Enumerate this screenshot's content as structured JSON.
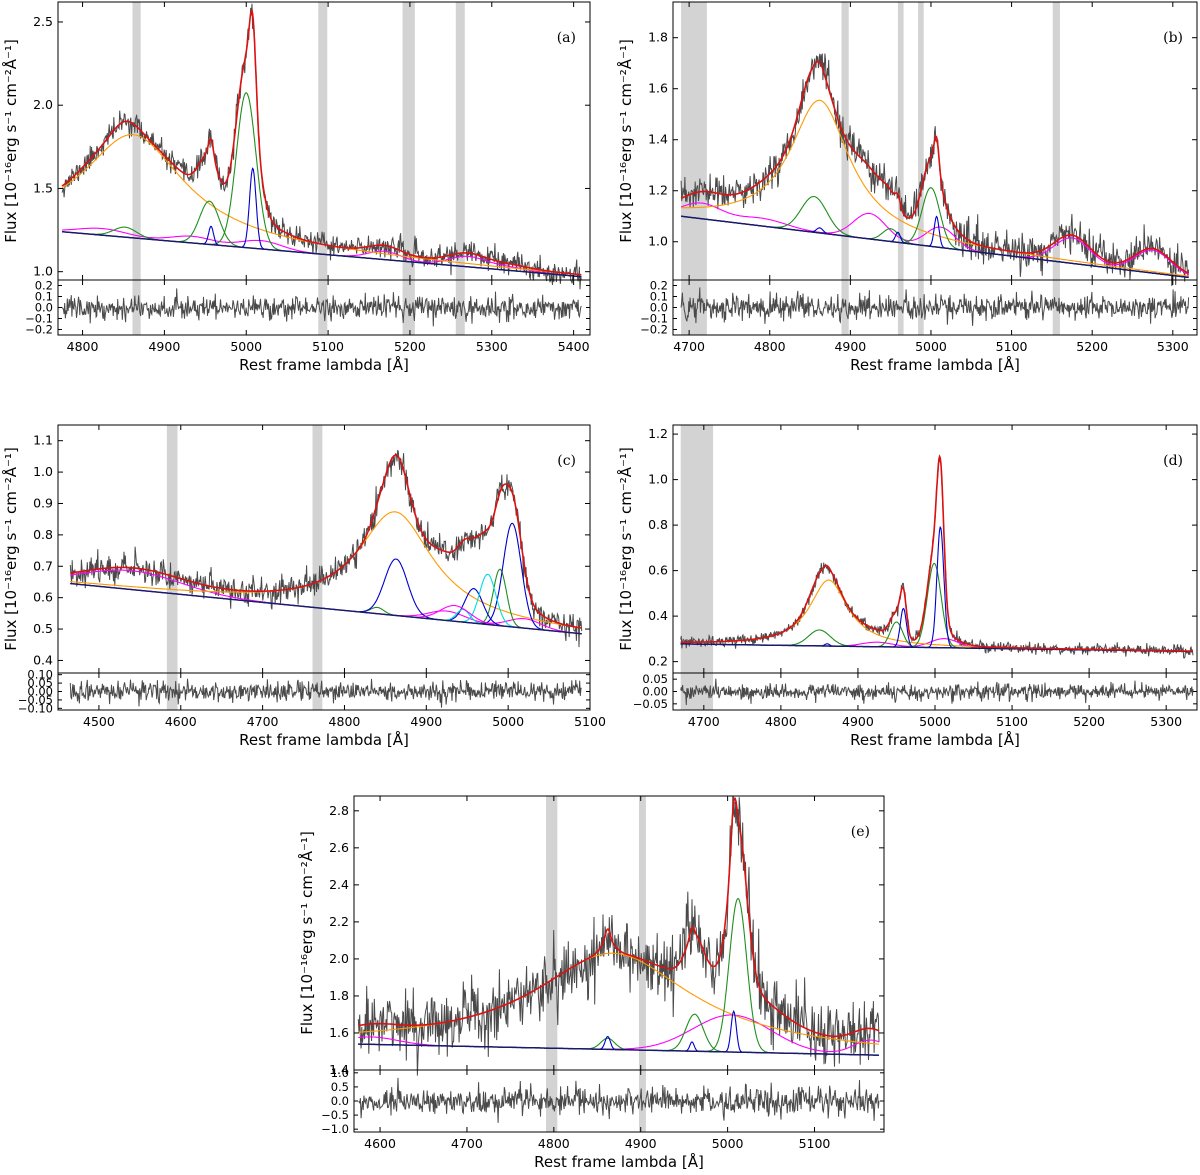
{
  "chart_data": [
    {
      "type": "line",
      "panel_label": "(a)",
      "xlabel": "Rest frame lambda [Å]",
      "ylabel": "Flux [10⁻¹⁶erg s⁻¹ cm⁻²Å⁻¹]",
      "xlim": [
        4770,
        5420
      ],
      "ylim": [
        0.95,
        2.62
      ],
      "resid_ylim": [
        -0.25,
        0.25
      ],
      "x_ticks": [
        4800,
        4900,
        5000,
        5100,
        5200,
        5300,
        5400
      ],
      "y_ticks": [
        1.0,
        1.5,
        2.0,
        2.5
      ],
      "resid_ticks": [
        0.2,
        0.1,
        0.0,
        -0.1,
        -0.2
      ],
      "masked_regions": [
        [
          4861,
          4871
        ],
        [
          5088,
          5099
        ],
        [
          5191,
          5206
        ],
        [
          5256,
          5267
        ]
      ],
      "continuum": {
        "x0": 4775,
        "y0": 1.24,
        "x1": 5410,
        "y1": 0.97
      },
      "feii": {
        "amp": 0.04,
        "bumps": [
          [
            4824,
            0.04,
            30
          ],
          [
            4934,
            0.04,
            25
          ],
          [
            5018,
            0.05,
            25
          ],
          [
            5169,
            0.05,
            20
          ],
          [
            5270,
            0.06,
            22
          ],
          [
            5320,
            0.02,
            25
          ]
        ]
      },
      "components": [
        {
          "color": "#ff9900",
          "peaks": [
            [
              4862,
              0.62,
              75,
              "L"
            ]
          ]
        },
        {
          "color": "#1f8f1f",
          "peaks": [
            [
              4852,
              0.06,
              14,
              "G"
            ],
            [
              4955,
              0.26,
              12,
              "G"
            ],
            [
              5000,
              0.93,
              12,
              "G"
            ]
          ]
        },
        {
          "color": "#0000cc",
          "peaks": [
            [
              4957,
              0.11,
              3,
              "G"
            ],
            [
              5008,
              0.48,
              4,
              "G"
            ]
          ]
        }
      ],
      "noise": 0.035,
      "resid_noise": 0.055,
      "seed": 11
    },
    {
      "type": "line",
      "panel_label": "(b)",
      "xlabel": "Rest frame lambda [Å]",
      "ylabel": "Flux [10⁻¹⁶erg s⁻¹ cm⁻²Å⁻¹]",
      "xlim": [
        4680,
        5330
      ],
      "ylim": [
        0.85,
        1.94
      ],
      "resid_ylim": [
        -0.25,
        0.25
      ],
      "x_ticks": [
        4700,
        4800,
        4900,
        5000,
        5100,
        5200,
        5300
      ],
      "y_ticks": [
        1.0,
        1.2,
        1.4,
        1.6,
        1.8
      ],
      "resid_ticks": [
        0.2,
        0.1,
        0.0,
        -0.1,
        -0.2
      ],
      "masked_regions": [
        [
          4690,
          4722
        ],
        [
          4889,
          4898
        ],
        [
          4959,
          4966
        ],
        [
          4984,
          4991
        ],
        [
          5151,
          5160
        ]
      ],
      "continuum": {
        "x0": 4690,
        "y0": 1.1,
        "x1": 5320,
        "y1": 0.86
      },
      "feii": {
        "amp": 0.05,
        "bumps": [
          [
            4715,
            0.06,
            25
          ],
          [
            4790,
            0.03,
            30
          ],
          [
            4924,
            0.1,
            20
          ],
          [
            5012,
            0.08,
            18
          ],
          [
            5175,
            0.1,
            22
          ],
          [
            5275,
            0.09,
            22
          ]
        ]
      },
      "components": [
        {
          "color": "#ff9900",
          "peaks": [
            [
              4862,
              0.52,
              45,
              "L"
            ]
          ]
        },
        {
          "color": "#1f8f1f",
          "peaks": [
            [
              4855,
              0.14,
              16,
              "G"
            ],
            [
              4950,
              0.05,
              10,
              "G"
            ],
            [
              5000,
              0.23,
              11,
              "G"
            ]
          ]
        },
        {
          "color": "#0000cc",
          "peaks": [
            [
              4862,
              0.02,
              4,
              "G"
            ],
            [
              4959,
              0.04,
              3,
              "G"
            ],
            [
              5007,
              0.12,
              3,
              "G"
            ]
          ]
        }
      ],
      "noise": 0.035,
      "resid_noise": 0.055,
      "seed": 23
    },
    {
      "type": "line",
      "panel_label": "(c)",
      "xlabel": "Rest frame lambda [Å]",
      "ylabel": "Flux [10⁻¹⁶erg s⁻¹ cm⁻²Å⁻¹]",
      "xlim": [
        4450,
        5100
      ],
      "ylim": [
        0.36,
        1.15
      ],
      "resid_ylim": [
        -0.11,
        0.11
      ],
      "x_ticks": [
        4500,
        4600,
        4700,
        4800,
        4900,
        5000,
        5100
      ],
      "y_ticks": [
        0.4,
        0.5,
        0.6,
        0.7,
        0.8,
        0.9,
        1.0,
        1.1
      ],
      "resid_ticks": [
        0.1,
        0.05,
        0.0,
        -0.05,
        -0.1
      ],
      "resid_tick_labels": [
        "0.10",
        "0.05",
        "0.00",
        "−0.05",
        "−0.10"
      ],
      "masked_regions": [
        [
          4583,
          4596
        ],
        [
          4761,
          4773
        ]
      ],
      "continuum": {
        "x0": 4465,
        "y0": 0.645,
        "x1": 5090,
        "y1": 0.485
      },
      "feii": {
        "amp": 0.04,
        "bumps": [
          [
            4540,
            0.06,
            60
          ],
          [
            4925,
            0.03,
            22
          ],
          [
            5020,
            0.03,
            20
          ]
        ]
      },
      "components": [
        {
          "color": "#ff9900",
          "peaks": [
            [
              4862,
              0.33,
              55,
              "L"
            ]
          ]
        },
        {
          "color": "#1f8f1f",
          "peaks": [
            [
              4840,
              0.02,
              8,
              "G"
            ],
            [
              4990,
              0.18,
              8,
              "G"
            ]
          ]
        },
        {
          "color": "#0000cc",
          "peaks": [
            [
              4863,
              0.18,
              14,
              "G"
            ],
            [
              4958,
              0.11,
              11,
              "G"
            ],
            [
              5005,
              0.33,
              11,
              "G"
            ]
          ]
        },
        {
          "color": "#00dddd",
          "peaks": [
            [
              4975,
              0.16,
              10,
              "G"
            ],
            [
              4945,
              0.04,
              8,
              "G"
            ]
          ]
        },
        {
          "color": "#ff00ff",
          "peaks": [
            [
              4935,
              0.05,
              18,
              "G"
            ]
          ]
        }
      ],
      "noise": 0.022,
      "resid_noise": 0.03,
      "seed": 37
    },
    {
      "type": "line",
      "panel_label": "(d)",
      "xlabel": "Rest frame lambda [Å]",
      "ylabel": "Flux [10⁻¹⁶erg s⁻¹ cm⁻²Å⁻¹]",
      "xlim": [
        4660,
        5340
      ],
      "ylim": [
        0.15,
        1.24
      ],
      "resid_ylim": [
        -0.075,
        0.075
      ],
      "x_ticks": [
        4700,
        4800,
        4900,
        5000,
        5100,
        5200,
        5300
      ],
      "y_ticks": [
        0.2,
        0.4,
        0.6,
        0.8,
        1.0,
        1.2
      ],
      "resid_ticks": [
        0.05,
        0.0,
        -0.05
      ],
      "resid_tick_labels": [
        "0.05",
        "0.00",
        "−0.05"
      ],
      "masked_regions": [
        [
          4670,
          4712
        ]
      ],
      "continuum": {
        "x0": 4670,
        "y0": 0.278,
        "x1": 5335,
        "y1": 0.245
      },
      "feii": {
        "amp": 0.02,
        "bumps": [
          [
            4925,
            0.02,
            20
          ],
          [
            5012,
            0.04,
            18
          ]
        ]
      },
      "components": [
        {
          "color": "#ff9900",
          "peaks": [
            [
              4862,
              0.29,
              30,
              "L"
            ]
          ]
        },
        {
          "color": "#1f8f1f",
          "peaks": [
            [
              4850,
              0.07,
              14,
              "G"
            ],
            [
              4950,
              0.11,
              8,
              "G"
            ],
            [
              4999,
              0.37,
              9,
              "G"
            ]
          ]
        },
        {
          "color": "#0000cc",
          "peaks": [
            [
              4860,
              0.01,
              3,
              "G"
            ],
            [
              4959,
              0.17,
              4,
              "G"
            ],
            [
              5007,
              0.53,
              4.5,
              "G"
            ]
          ]
        }
      ],
      "noise": 0.012,
      "resid_noise": 0.016,
      "seed": 53
    },
    {
      "type": "line",
      "panel_label": "(e)",
      "xlabel": "Rest frame lambda [Å]",
      "ylabel": "Flux [10⁻¹⁶erg s⁻¹ cm⁻²Å⁻¹]",
      "xlim": [
        4570,
        5180
      ],
      "ylim": [
        1.4,
        2.88
      ],
      "resid_ylim": [
        -1.1,
        1.1
      ],
      "x_ticks": [
        4600,
        4700,
        4800,
        4900,
        5000,
        5100
      ],
      "y_ticks": [
        1.4,
        1.6,
        1.8,
        2.0,
        2.2,
        2.4,
        2.6,
        2.8
      ],
      "resid_ticks": [
        1.0,
        0.5,
        0.0,
        -0.5,
        -1.0
      ],
      "resid_tick_labels": [
        "1.0",
        "0.5",
        "0.0",
        "−0.5",
        "−1.0"
      ],
      "masked_regions": [
        [
          4791,
          4804
        ],
        [
          4898,
          4906
        ]
      ],
      "continuum": {
        "x0": 4575,
        "y0": 1.54,
        "x1": 5175,
        "y1": 1.48
      },
      "feii": {
        "amp": 0.04,
        "bumps": [
          [
            4590,
            0.04,
            30
          ],
          [
            5005,
            0.2,
            45
          ],
          [
            5165,
            0.08,
            20
          ]
        ]
      },
      "components": [
        {
          "color": "#ff9900",
          "peaks": [
            [
              4868,
              0.52,
              110,
              "L"
            ]
          ]
        },
        {
          "color": "#1f8f1f",
          "peaks": [
            [
              4862,
              0.06,
              8,
              "G"
            ],
            [
              4962,
              0.2,
              10,
              "G"
            ],
            [
              5012,
              0.83,
              10,
              "G"
            ]
          ]
        },
        {
          "color": "#0000cc",
          "peaks": [
            [
              4862,
              0.07,
              3,
              "G"
            ],
            [
              4959,
              0.05,
              2.5,
              "G"
            ],
            [
              5007,
              0.22,
              3,
              "G"
            ]
          ]
        }
      ],
      "noise": 0.09,
      "resid_noise": 0.25,
      "seed": 71
    }
  ]
}
